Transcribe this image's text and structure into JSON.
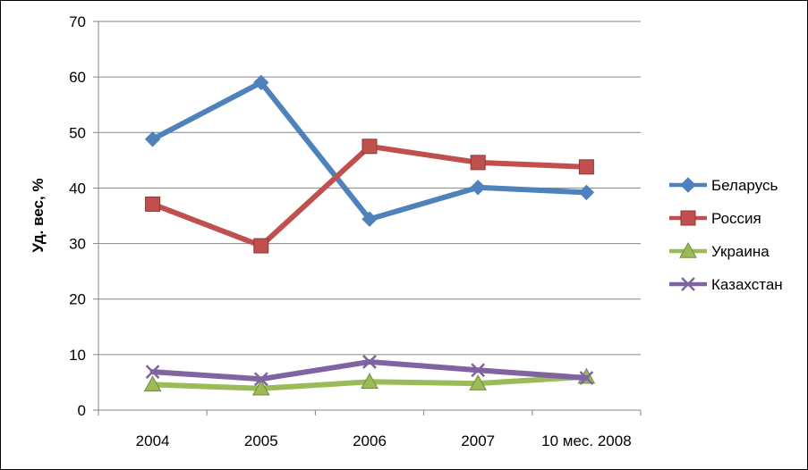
{
  "chart_data": {
    "type": "line",
    "title": "",
    "xlabel": "",
    "ylabel": "Уд. вес, %",
    "categories": [
      "2004",
      "2005",
      "2006",
      "2007",
      "10 мес. 2008"
    ],
    "ylim": [
      0,
      70
    ],
    "yticks": [
      0,
      10,
      20,
      30,
      40,
      50,
      60,
      70
    ],
    "grid": true,
    "legend_position": "right",
    "series": [
      {
        "name": "Беларусь",
        "values": [
          48.8,
          59.0,
          34.4,
          40.1,
          39.2
        ],
        "color": "#4F81BD",
        "marker": "diamond"
      },
      {
        "name": "Россия",
        "values": [
          37.1,
          29.6,
          47.5,
          44.6,
          43.8
        ],
        "color": "#C0504D",
        "marker": "square"
      },
      {
        "name": "Украина",
        "values": [
          4.6,
          3.9,
          5.1,
          4.8,
          6.0
        ],
        "color": "#9BBB59",
        "marker": "triangle"
      },
      {
        "name": "Казахстан",
        "values": [
          6.9,
          5.6,
          8.7,
          7.2,
          5.8
        ],
        "color": "#8064A2",
        "marker": "x"
      }
    ]
  }
}
